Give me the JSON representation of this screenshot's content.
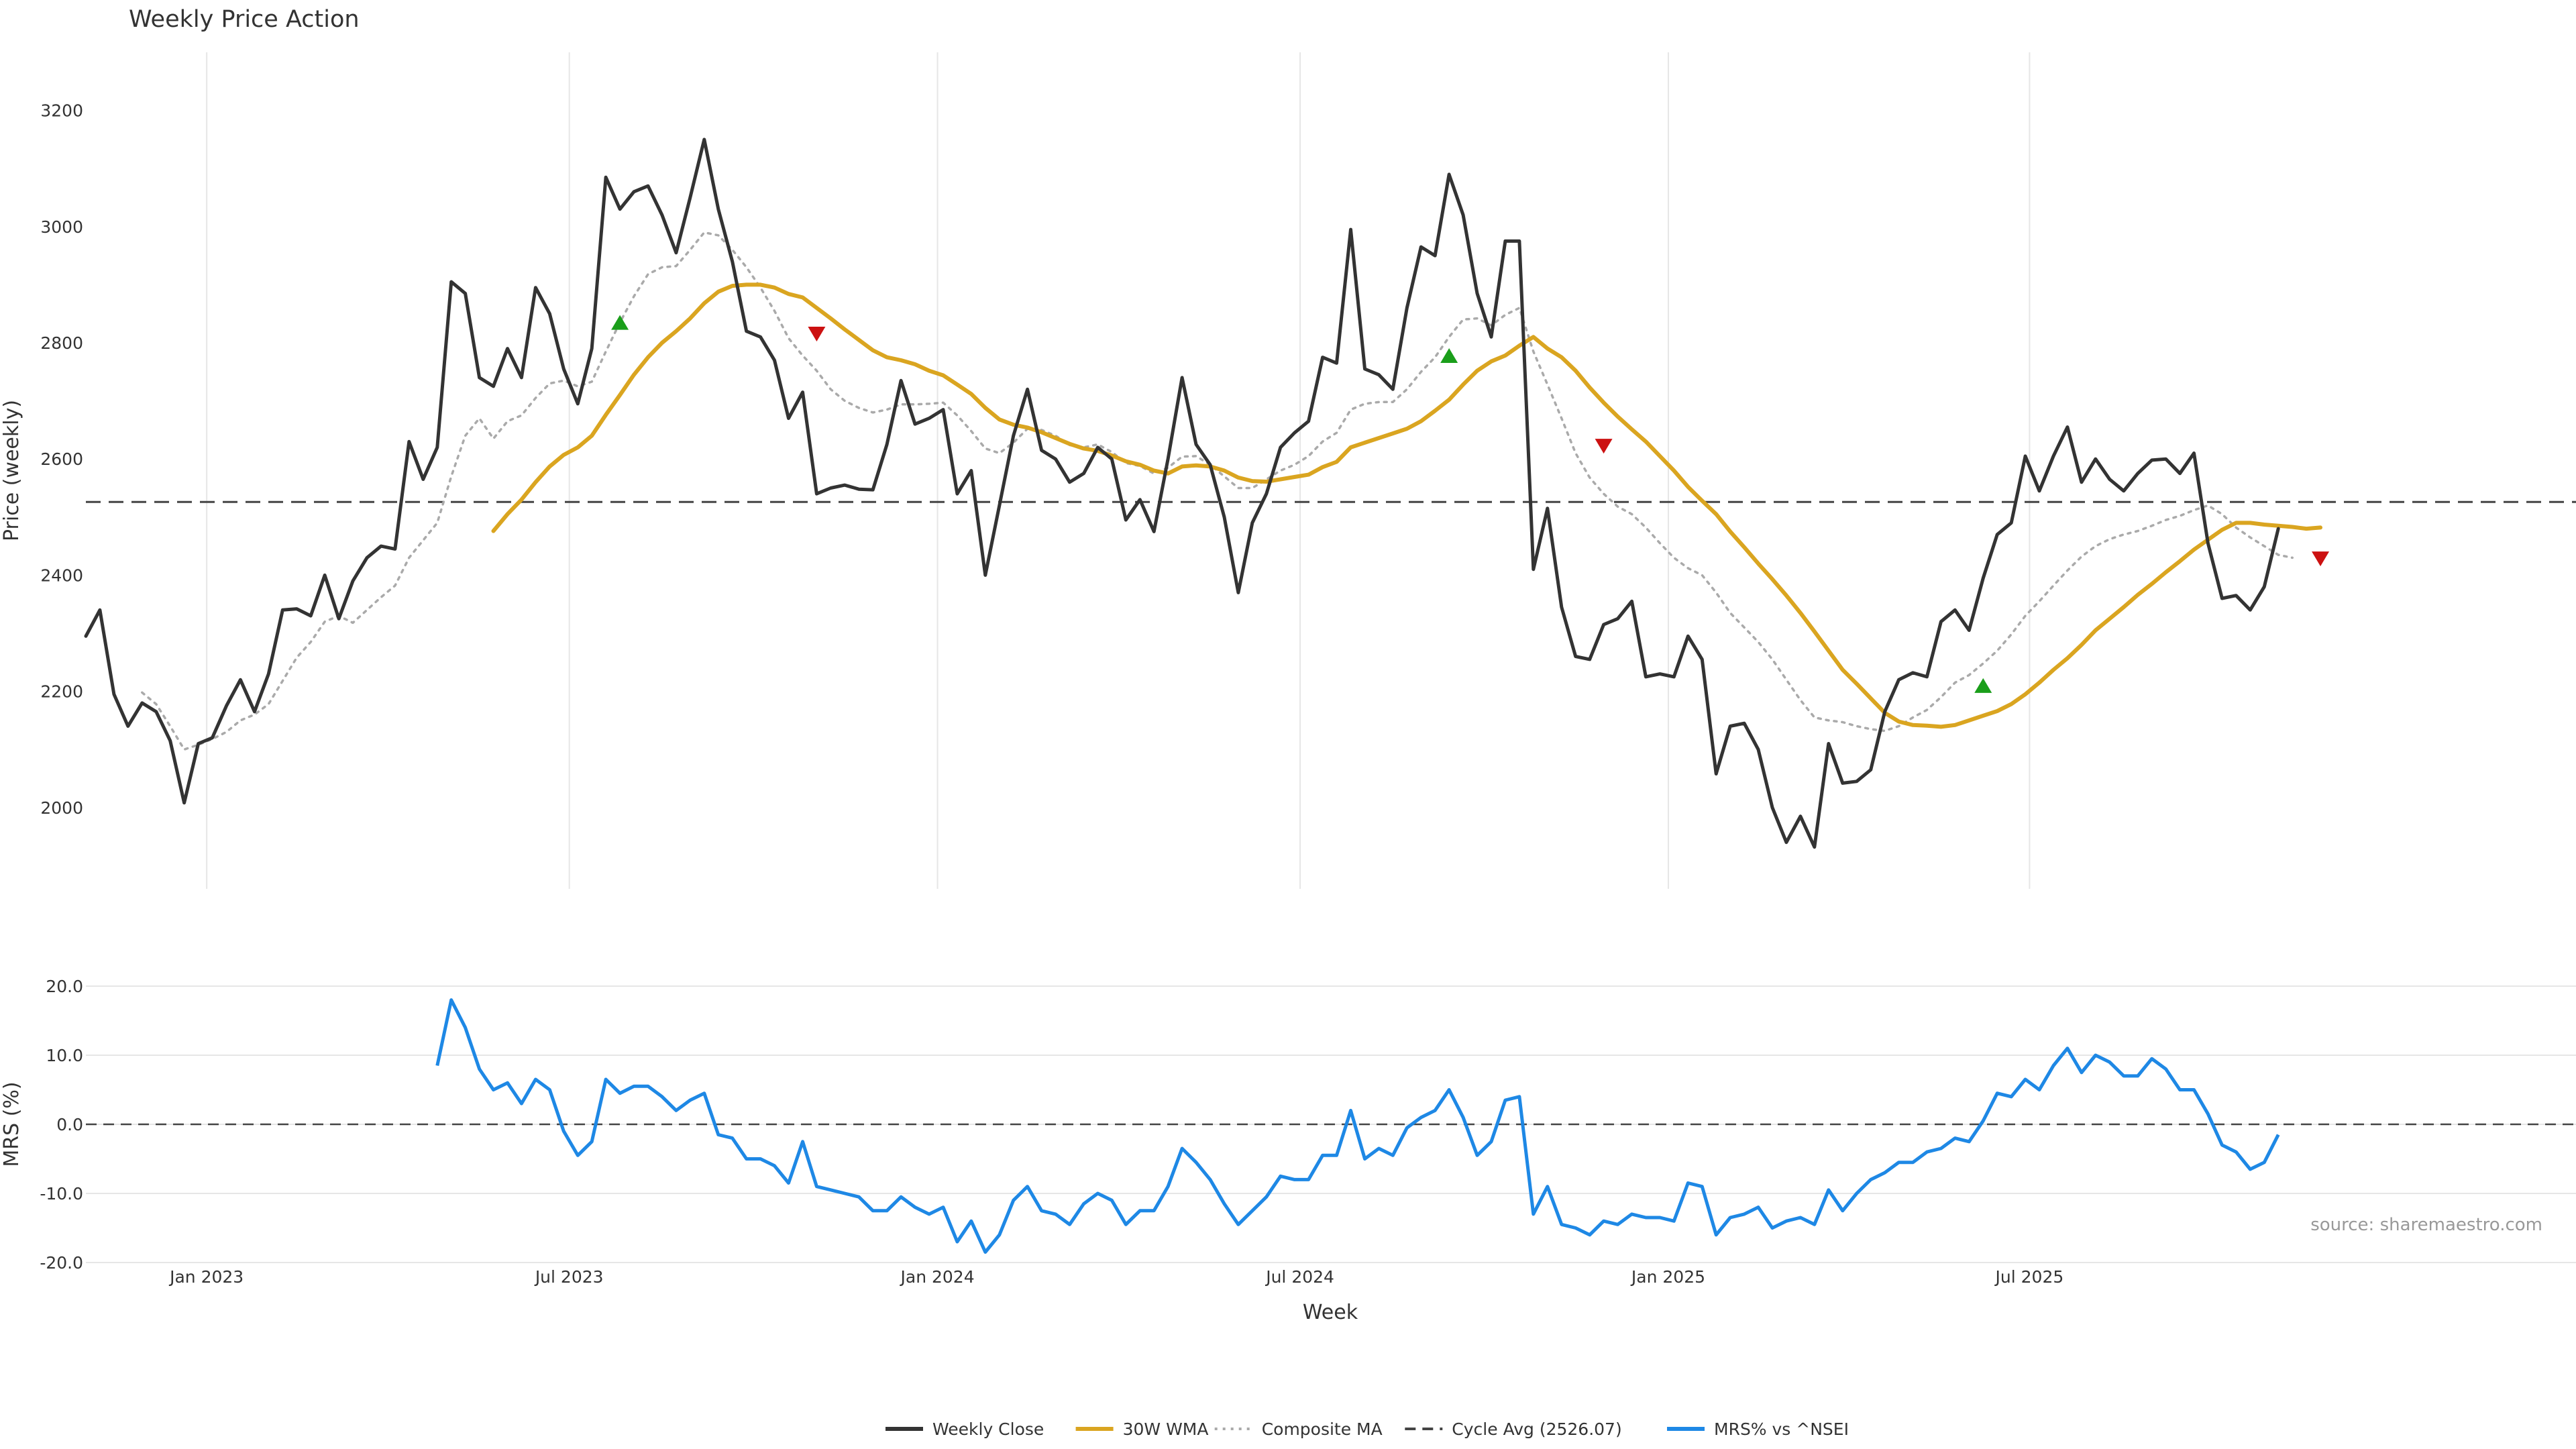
{
  "chart_data": [
    {
      "type": "line",
      "title": "Weekly Price Action",
      "ylabel": "Price (weekly)",
      "ylim": [
        1860,
        3300
      ],
      "yticks": [
        2000,
        2200,
        2400,
        2600,
        2800,
        3000,
        3200
      ],
      "x_start": "2022-11-04",
      "x_interval": "weekly",
      "grid": "vertical",
      "series": [
        {
          "name": "Weekly Close",
          "color": "#333333",
          "values": [
            2295,
            2340,
            2195,
            2140,
            2180,
            2165,
            2115,
            2008,
            2110,
            2120,
            2175,
            2220,
            2165,
            2230,
            2340,
            2342,
            2330,
            2400,
            2325,
            2390,
            2430,
            2450,
            2445,
            2630,
            2565,
            2620,
            2905,
            2885,
            2740,
            2725,
            2790,
            2740,
            2895,
            2850,
            2755,
            2695,
            2790,
            3085,
            3030,
            3060,
            3070,
            3020,
            2955,
            3050,
            3150,
            3030,
            2940,
            2820,
            2810,
            2770,
            2670,
            2715,
            2540,
            2550,
            2555,
            2548,
            2547,
            2625,
            2735,
            2660,
            2670,
            2685,
            2540,
            2580,
            2400,
            2520,
            2640,
            2720,
            2615,
            2600,
            2560,
            2575,
            2620,
            2600,
            2495,
            2530,
            2475,
            2600,
            2740,
            2625,
            2590,
            2500,
            2370,
            2490,
            2540,
            2620,
            2645,
            2665,
            2775,
            2765,
            2995,
            2755,
            2745,
            2720,
            2860,
            2965,
            2950,
            3090,
            3020,
            2885,
            2810,
            2975,
            2975,
            2410,
            2515,
            2345,
            2260,
            2255,
            2315,
            2325,
            2355,
            2225,
            2230,
            2225,
            2295,
            2255,
            2058,
            2140,
            2145,
            2100,
            2000,
            1940,
            1985,
            1932,
            2110,
            2042,
            2045,
            2065,
            2165,
            2220,
            2232,
            2225,
            2320,
            2340,
            2305,
            2395,
            2470,
            2490,
            2605,
            2545,
            2605,
            2655,
            2560,
            2600,
            2565,
            2545,
            2575,
            2598,
            2600,
            2575,
            2610,
            2455,
            2360,
            2365,
            2340,
            2380,
            2480
          ]
        },
        {
          "name": "30W WMA",
          "color": "#DAA520",
          "values": [
            null,
            null,
            null,
            null,
            null,
            null,
            null,
            null,
            null,
            null,
            null,
            null,
            null,
            null,
            null,
            null,
            null,
            null,
            null,
            null,
            null,
            null,
            null,
            null,
            null,
            null,
            null,
            null,
            null,
            2476,
            2505,
            2530,
            2560,
            2587,
            2607,
            2620,
            2640,
            2676,
            2710,
            2745,
            2775,
            2800,
            2820,
            2842,
            2868,
            2888,
            2898,
            2900,
            2900,
            2895,
            2884,
            2878,
            2860,
            2842,
            2823,
            2805,
            2787,
            2775,
            2770,
            2763,
            2752,
            2744,
            2728,
            2712,
            2688,
            2668,
            2659,
            2654,
            2646,
            2636,
            2626,
            2618,
            2614,
            2606,
            2596,
            2590,
            2580,
            2575,
            2587,
            2589,
            2587,
            2580,
            2568,
            2562,
            2561,
            2565,
            2569,
            2573,
            2586,
            2595,
            2620,
            2628,
            2636,
            2644,
            2652,
            2665,
            2683,
            2702,
            2728,
            2752,
            2768,
            2778,
            2795,
            2810,
            2790,
            2775,
            2752,
            2723,
            2697,
            2673,
            2651,
            2630,
            2605,
            2580,
            2552,
            2528,
            2505,
            2475,
            2448,
            2420,
            2393,
            2365,
            2335,
            2303,
            2270,
            2237,
            2213,
            2188,
            2163,
            2148,
            2142,
            2141,
            2139,
            2142,
            2150,
            2158,
            2166,
            2178,
            2195,
            2215,
            2237,
            2257,
            2280,
            2305,
            2325,
            2345,
            2366,
            2385,
            2405,
            2424,
            2444,
            2461,
            2478,
            2490,
            2490,
            2487,
            2485,
            2483,
            2480,
            2482
          ]
        },
        {
          "name": "Composite MA",
          "color": "#aaaaaa",
          "dash": "dotted",
          "values": [
            null,
            null,
            null,
            null,
            2198,
            2178,
            2140,
            2100,
            2108,
            2118,
            2130,
            2150,
            2160,
            2178,
            2218,
            2258,
            2285,
            2320,
            2330,
            2318,
            2340,
            2362,
            2382,
            2430,
            2460,
            2490,
            2570,
            2640,
            2670,
            2635,
            2665,
            2675,
            2705,
            2730,
            2735,
            2725,
            2733,
            2785,
            2835,
            2880,
            2918,
            2930,
            2932,
            2960,
            2990,
            2985,
            2960,
            2930,
            2895,
            2855,
            2808,
            2778,
            2752,
            2720,
            2700,
            2688,
            2680,
            2685,
            2694,
            2694,
            2695,
            2697,
            2675,
            2648,
            2618,
            2610,
            2628,
            2652,
            2650,
            2640,
            2624,
            2620,
            2625,
            2612,
            2593,
            2588,
            2575,
            2585,
            2604,
            2605,
            2590,
            2570,
            2550,
            2550,
            2565,
            2580,
            2590,
            2605,
            2630,
            2645,
            2685,
            2695,
            2698,
            2698,
            2720,
            2750,
            2775,
            2810,
            2840,
            2842,
            2830,
            2848,
            2860,
            2785,
            2728,
            2670,
            2610,
            2568,
            2540,
            2518,
            2505,
            2482,
            2455,
            2430,
            2412,
            2400,
            2370,
            2335,
            2310,
            2285,
            2255,
            2220,
            2185,
            2155,
            2150,
            2147,
            2140,
            2135,
            2132,
            2140,
            2155,
            2168,
            2190,
            2215,
            2228,
            2248,
            2270,
            2298,
            2330,
            2355,
            2382,
            2408,
            2432,
            2450,
            2462,
            2470,
            2476,
            2485,
            2495,
            2502,
            2512,
            2520,
            2505,
            2482,
            2465,
            2450,
            2435,
            2430
          ]
        }
      ],
      "reference_line": {
        "label": "Cycle Avg (2526.07)",
        "value": 2526.07
      },
      "markers": {
        "up": [
          {
            "x": 38,
            "y": 2835
          },
          {
            "x": 97,
            "y": 2778
          },
          {
            "x": 135,
            "y": 2210
          }
        ],
        "down": [
          {
            "x": 52,
            "y": 2815
          },
          {
            "x": 108,
            "y": 2622
          },
          {
            "x": 159,
            "y": 2428
          }
        ]
      }
    },
    {
      "type": "line",
      "ylabel": "MRS (%)",
      "xlabel": "Week",
      "ylim": [
        -20,
        20
      ],
      "yticks": [
        "20.0",
        "10.0",
        "0.0",
        "-10.0",
        "-20.0"
      ],
      "grid": "horizontal",
      "reference_value": 0,
      "series": [
        {
          "name": "MRS% vs ^NSEI",
          "color": "#1E88E5",
          "values": [
            null,
            null,
            null,
            null,
            null,
            null,
            null,
            null,
            null,
            null,
            null,
            null,
            null,
            null,
            null,
            null,
            null,
            null,
            null,
            null,
            null,
            null,
            null,
            null,
            null,
            8.5,
            18,
            14,
            8,
            5,
            6,
            3,
            6.5,
            5,
            -1,
            -4.5,
            -2.5,
            6.5,
            4.5,
            5.5,
            5.5,
            4,
            2,
            3.5,
            4.5,
            -1.5,
            -2,
            -5,
            -5,
            -6,
            -8.5,
            -2.5,
            -9,
            -9.5,
            -10,
            -10.5,
            -12.5,
            -12.5,
            -10.5,
            -12,
            -13,
            -12,
            -17,
            -14,
            -18.5,
            -16,
            -11,
            -9,
            -12.5,
            -13,
            -14.5,
            -11.5,
            -10,
            -11,
            -14.5,
            -12.5,
            -12.5,
            -9,
            -3.5,
            -5.5,
            -8,
            -11.5,
            -14.5,
            -12.5,
            -10.5,
            -7.5,
            -8,
            -8,
            -4.5,
            -4.5,
            2,
            -5,
            -3.5,
            -4.5,
            -0.5,
            1,
            2,
            5,
            1,
            -4.5,
            -2.5,
            3.5,
            4,
            -13,
            -9,
            -14.5,
            -15,
            -16,
            -14,
            -14.5,
            -13,
            -13.5,
            -13.5,
            -14,
            -8.5,
            -9,
            -16,
            -13.5,
            -13,
            -12,
            -15,
            -14,
            -13.5,
            -14.5,
            -9.5,
            -12.5,
            -10,
            -8,
            -7,
            -5.5,
            -5.5,
            -4,
            -3.5,
            -2,
            -2.5,
            0.5,
            4.5,
            4,
            6.5,
            5,
            8.5,
            11,
            7.5,
            10,
            9,
            7,
            7,
            9.5,
            8,
            5,
            5,
            1.5,
            -3,
            -4,
            -6.5,
            -5.5,
            -1.5
          ]
        }
      ]
    }
  ],
  "x_axis": {
    "label": "Week",
    "ticks": [
      {
        "label": "Jan 2023",
        "week": 8.6
      },
      {
        "label": "Jul 2023",
        "week": 34.4
      },
      {
        "label": "Jan 2024",
        "week": 60.6
      },
      {
        "label": "Jul 2024",
        "week": 86.4
      },
      {
        "label": "Jan 2025",
        "week": 112.6
      },
      {
        "label": "Jul 2025",
        "week": 138.3
      }
    ]
  },
  "legend": {
    "position": "bottom-center",
    "items": [
      {
        "label": "Weekly Close",
        "color": "#333333",
        "style": "solid"
      },
      {
        "label": "30W WMA",
        "color": "#DAA520",
        "style": "solid"
      },
      {
        "label": "Composite MA",
        "color": "#aaaaaa",
        "style": "dotted"
      },
      {
        "label": "Cycle Avg (2526.07)",
        "color": "#444444",
        "style": "dashed"
      },
      {
        "label": "MRS% vs ^NSEI",
        "color": "#1E88E5",
        "style": "solid"
      }
    ]
  },
  "source_note": "source: sharemaestro.com",
  "colors": {
    "up_marker": "#1a9e1a",
    "down_marker": "#cc1111",
    "grid": "#e6e6e6"
  }
}
